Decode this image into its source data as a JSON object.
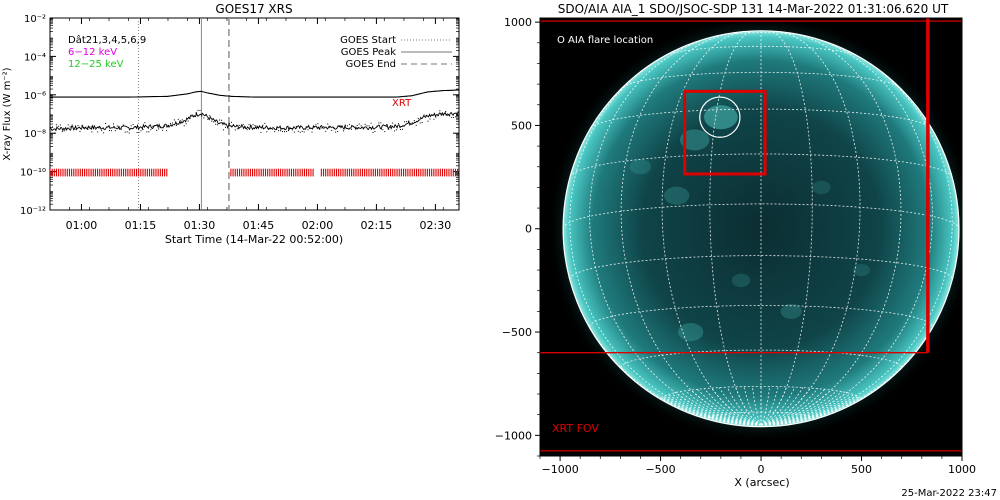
{
  "colors": {
    "xrt": "#dd0000",
    "low_energy": "#e000e0",
    "high_energy": "#22cc22",
    "disk_core": "#0c3a3e",
    "disk_glow": "#2fa3a3",
    "grid": "#ffffff"
  },
  "chart_data": [
    {
      "type": "line",
      "title": "GOES17 XRS",
      "xlabel": "Start Time (14-Mar-22 00:52:00)",
      "ylabel": "X-ray Flux (W m⁻²)",
      "x_tick_labels": [
        "01:00",
        "01:15",
        "01:30",
        "01:45",
        "02:00",
        "02:15",
        "02:30"
      ],
      "x_ticks_min": [
        8,
        23,
        38,
        53,
        68,
        83,
        98
      ],
      "xlim_min": [
        0,
        104
      ],
      "ylim_log10": [
        -12,
        -2
      ],
      "y_ticks_log10": [
        -2,
        -4,
        -6,
        -8,
        -10,
        -12
      ],
      "y_tick_labels": [
        "10⁻²",
        "10⁻⁴",
        "10⁻⁶",
        "10⁻⁸",
        "10⁻¹⁰",
        "10⁻¹²"
      ],
      "legend_left": {
        "dataset": "Dât21,3,4,5,6,9",
        "low": "6−12 keV",
        "high": "12−25 keV"
      },
      "legend_right": [
        {
          "label": "GOES Start",
          "style": "dotted"
        },
        {
          "label": "GOES Peak",
          "style": "solid"
        },
        {
          "label": "GOES End",
          "style": "dashed"
        }
      ],
      "event_lines_min": {
        "start": 22.5,
        "peak": 38.5,
        "end": 45.5
      },
      "xrt_label": "XRT",
      "series": [
        {
          "key": "low",
          "x_min": [
            0,
            10,
            20,
            30,
            35,
            37,
            38.5,
            40,
            43,
            46,
            52,
            60,
            70,
            80,
            88,
            92,
            96,
            100,
            104
          ],
          "y_log10": [
            -6.12,
            -6.12,
            -6.12,
            -6.08,
            -5.95,
            -5.85,
            -5.82,
            -5.9,
            -6.02,
            -6.08,
            -6.12,
            -6.12,
            -6.12,
            -6.12,
            -6.12,
            -6.05,
            -5.85,
            -5.78,
            -5.75
          ]
        },
        {
          "key": "high",
          "x_min": [
            0,
            10,
            20,
            30,
            34,
            37,
            38.5,
            40,
            43,
            46,
            52,
            60,
            70,
            80,
            88,
            92,
            96,
            100,
            104
          ],
          "y_log10": [
            -7.78,
            -7.7,
            -7.72,
            -7.6,
            -7.35,
            -7.05,
            -6.95,
            -7.15,
            -7.5,
            -7.65,
            -7.7,
            -7.72,
            -7.7,
            -7.7,
            -7.65,
            -7.45,
            -7.1,
            -6.98,
            -6.95
          ]
        }
      ],
      "xrt_coverage_min": [
        [
          0,
          30
        ],
        [
          46,
          67
        ],
        [
          69,
          104
        ]
      ]
    },
    {
      "type": "image",
      "title": "SDO/AIA AIA_1 SDO/JSOC-SDP 131 14-Mar-2022 01:31:06.620 UT",
      "xlabel": "X (arcsec)",
      "x_ticks": [
        -1000,
        -500,
        0,
        500,
        1000
      ],
      "y_ticks": [
        1000,
        500,
        0,
        -500,
        -1000
      ],
      "x_tick_labels": [
        "−1000",
        "−500",
        "0",
        "500",
        "1000"
      ],
      "y_tick_labels": [
        "1000",
        "500",
        "0",
        "−500",
        "−1000"
      ],
      "xlim": [
        -1100,
        1000
      ],
      "ylim": [
        -1100,
        1020
      ],
      "solar_radius_arcsec": 985,
      "legend": "O AIA flare location",
      "xrt_fov_label": "XRT FOV",
      "xrt_fov_arcsec": {
        "x": [
          -1110,
          1000
        ],
        "y": [
          -1075,
          1005
        ]
      },
      "xrt_fov_edges": {
        "right_x": 830,
        "bottom_y": -600
      },
      "flare_box_arcsec": {
        "x": [
          -380,
          20
        ],
        "y": [
          265,
          665
        ]
      },
      "flare_circle_arcsec": {
        "x": -205,
        "y": 540,
        "r": 100
      }
    }
  ],
  "footer": {
    "timestamp": "25-Mar-2022 23:47"
  }
}
